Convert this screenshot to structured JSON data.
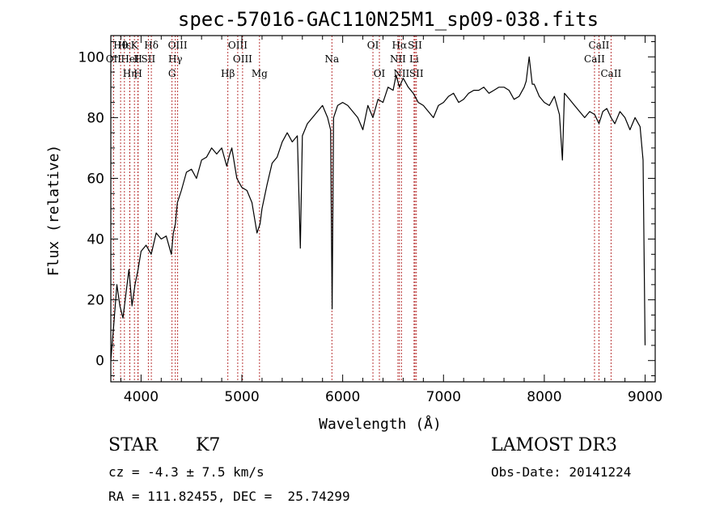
{
  "chart_data": {
    "type": "line",
    "title": "spec-57016-GAC110N25M1_sp09-038.fits",
    "xlabel": "Wavelength (Å)",
    "ylabel": "Flux (relative)",
    "xlim": [
      3700,
      9100
    ],
    "ylim": [
      -7,
      107
    ],
    "xticks": [
      4000,
      5000,
      6000,
      7000,
      8000,
      9000
    ],
    "yticks": [
      0,
      20,
      40,
      60,
      80,
      100
    ],
    "grid": false,
    "line_color": "#000000",
    "marker_color": "#b22222",
    "spectral_lines": [
      {
        "label": "Hθ",
        "x": 3797,
        "row": 0
      },
      {
        "label": "Hε",
        "x": 3835,
        "row": 0
      },
      {
        "label": "K",
        "x": 3934,
        "row": 0
      },
      {
        "label": "Hδ",
        "x": 4102,
        "row": 0
      },
      {
        "label": "OIII",
        "x": 4363,
        "row": 0
      },
      {
        "label": "OIII",
        "x": 4959,
        "row": 0
      },
      {
        "label": "OI",
        "x": 6300,
        "row": 0
      },
      {
        "label": "Hα",
        "x": 6563,
        "row": 0
      },
      {
        "label": "SII",
        "x": 6717,
        "row": 0
      },
      {
        "label": "CaII",
        "x": 8542,
        "row": 0
      },
      {
        "label": "OII",
        "x": 3727,
        "row": 1
      },
      {
        "label": "H",
        "x": 3970,
        "row": 1
      },
      {
        "label": "HeI",
        "x": 3889,
        "row": 1
      },
      {
        "label": "SII",
        "x": 4072,
        "row": 1
      },
      {
        "label": "Hγ",
        "x": 4340,
        "row": 1
      },
      {
        "label": "OIII",
        "x": 5007,
        "row": 1
      },
      {
        "label": "Na",
        "x": 5893,
        "row": 1
      },
      {
        "label": "NII",
        "x": 6548,
        "row": 1
      },
      {
        "label": "Li",
        "x": 6708,
        "row": 1
      },
      {
        "label": "CaII",
        "x": 8498,
        "row": 1
      },
      {
        "label": "Hη",
        "x": 3889,
        "row": 2
      },
      {
        "label": "H",
        "x": 3970,
        "row": 2
      },
      {
        "label": "G",
        "x": 4307,
        "row": 2
      },
      {
        "label": "Hβ",
        "x": 4861,
        "row": 2
      },
      {
        "label": "Mg",
        "x": 5175,
        "row": 2
      },
      {
        "label": "OI",
        "x": 6364,
        "row": 2
      },
      {
        "label": "NII",
        "x": 6583,
        "row": 2
      },
      {
        "label": "SII",
        "x": 6731,
        "row": 2
      },
      {
        "label": "CaII",
        "x": 8662,
        "row": 2
      }
    ],
    "series": [
      {
        "x": [
          3700,
          3730,
          3760,
          3790,
          3820,
          3850,
          3880,
          3910,
          3940,
          3970,
          4000,
          4050,
          4100,
          4150,
          4200,
          4250,
          4300,
          4320,
          4340,
          4360,
          4400,
          4450,
          4500,
          4550,
          4600,
          4650,
          4700,
          4750,
          4800,
          4850,
          4880,
          4900,
          4950,
          5000,
          5050,
          5100,
          5150,
          5180,
          5200,
          5250,
          5300,
          5350,
          5400,
          5450,
          5500,
          5550,
          5580,
          5600,
          5650,
          5700,
          5750,
          5800,
          5850,
          5880,
          5895,
          5910,
          5950,
          6000,
          6050,
          6100,
          6150,
          6200,
          6250,
          6300,
          6350,
          6400,
          6450,
          6500,
          6530,
          6563,
          6600,
          6650,
          6700,
          6750,
          6800,
          6850,
          6900,
          6950,
          7000,
          7050,
          7100,
          7150,
          7200,
          7250,
          7300,
          7350,
          7400,
          7450,
          7500,
          7550,
          7600,
          7650,
          7700,
          7750,
          7800,
          7820,
          7850,
          7880,
          7900,
          7950,
          8000,
          8050,
          8100,
          8150,
          8180,
          8200,
          8250,
          8300,
          8350,
          8400,
          8450,
          8500,
          8542,
          8580,
          8620,
          8662,
          8700,
          8750,
          8800,
          8850,
          8900,
          8950,
          8980,
          9000
        ],
        "y": [
          0,
          12,
          25,
          18,
          14,
          22,
          30,
          18,
          25,
          30,
          36,
          38,
          35,
          42,
          40,
          41,
          35,
          42,
          45,
          52,
          56,
          62,
          63,
          60,
          66,
          67,
          70,
          68,
          70,
          64,
          68,
          70,
          60,
          57,
          56,
          52,
          42,
          45,
          50,
          58,
          65,
          67,
          72,
          75,
          72,
          74,
          37,
          74,
          78,
          80,
          82,
          84,
          80,
          76,
          17,
          80,
          84,
          85,
          84,
          82,
          80,
          76,
          84,
          80,
          86,
          85,
          90,
          89,
          94,
          90,
          93,
          90,
          88,
          85,
          84,
          82,
          80,
          84,
          85,
          87,
          88,
          85,
          86,
          88,
          89,
          89,
          90,
          88,
          89,
          90,
          90,
          89,
          86,
          87,
          90,
          92,
          100,
          91,
          91,
          87,
          85,
          84,
          87,
          81,
          66,
          88,
          86,
          84,
          82,
          80,
          82,
          81,
          78,
          82,
          83,
          80,
          78,
          82,
          80,
          76,
          80,
          77,
          66,
          5
        ]
      }
    ]
  },
  "info": {
    "object_type": "STAR",
    "subclass": "K7",
    "survey": "LAMOST DR3",
    "cz": "cz = -4.3 ± 7.5 km/s",
    "obs_date": "Obs-Date: 20141224",
    "radec": "RA = 111.82455, DEC =  25.74299"
  }
}
